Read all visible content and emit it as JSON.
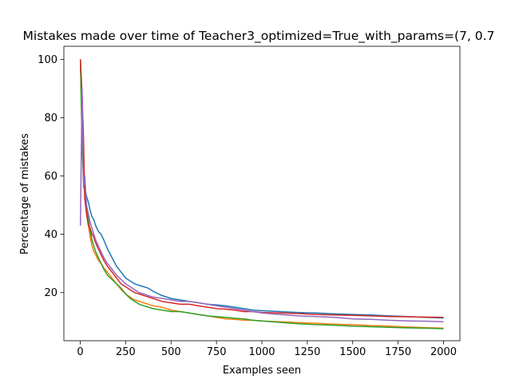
{
  "chart_data": {
    "type": "line",
    "title": "Mistakes made over time of Teacher3_optimized=True_with_params=(7, 0.7",
    "xlabel": "Examples seen",
    "ylabel": "Percentage of mistakes",
    "xlim": [
      -90,
      2090
    ],
    "ylim": [
      3.5,
      104.5
    ],
    "xticks": [
      0,
      250,
      500,
      750,
      1000,
      1250,
      1500,
      1750,
      2000
    ],
    "yticks": [
      20,
      40,
      60,
      80,
      100
    ],
    "grid": false,
    "legend": "none",
    "series": [
      {
        "name": "series-1",
        "color": "#1f77b4",
        "x": [
          1,
          10,
          18,
          25,
          35,
          45,
          55,
          65,
          75,
          85,
          100,
          115,
          130,
          150,
          175,
          200,
          225,
          250,
          275,
          300,
          325,
          350,
          375,
          400,
          450,
          500,
          550,
          600,
          650,
          700,
          750,
          800,
          850,
          900,
          950,
          1000,
          1100,
          1200,
          1300,
          1400,
          1500,
          1600,
          1700,
          1800,
          1900,
          2000
        ],
        "y": [
          100,
          76,
          60,
          56,
          53,
          51,
          48,
          46,
          45,
          43,
          41,
          40,
          38,
          35,
          32,
          29,
          27,
          25,
          24,
          23,
          22.5,
          22,
          21.5,
          20.5,
          19,
          18,
          17.5,
          17,
          16.5,
          16,
          15.8,
          15.5,
          15,
          14.5,
          14,
          13.8,
          13.5,
          13.2,
          13,
          12.7,
          12.5,
          12.3,
          12,
          11.8,
          11.5,
          11.3
        ]
      },
      {
        "name": "series-2",
        "color": "#ff7f0e",
        "x": [
          1,
          10,
          18,
          25,
          35,
          45,
          55,
          65,
          75,
          85,
          100,
          115,
          130,
          150,
          175,
          200,
          225,
          250,
          275,
          300,
          325,
          350,
          375,
          400,
          450,
          500,
          550,
          600,
          650,
          700,
          750,
          800,
          850,
          900,
          950,
          1000,
          1100,
          1200,
          1300,
          1400,
          1500,
          1600,
          1700,
          1800,
          1900,
          2000
        ],
        "y": [
          100,
          80,
          62,
          53,
          47,
          43,
          39,
          36,
          34,
          33,
          31,
          30,
          28.5,
          27,
          25,
          23,
          21,
          19.5,
          18.5,
          17.5,
          17,
          16.5,
          16,
          15.5,
          15,
          14,
          13.5,
          13,
          12.5,
          12,
          11.5,
          11,
          10.8,
          10.5,
          10.5,
          10.3,
          10,
          9.7,
          9.5,
          9.2,
          9,
          8.7,
          8.5,
          8.2,
          8,
          7.8
        ]
      },
      {
        "name": "series-3",
        "color": "#2ca02c",
        "x": [
          1,
          10,
          18,
          25,
          35,
          45,
          55,
          65,
          75,
          85,
          100,
          115,
          130,
          150,
          175,
          200,
          225,
          250,
          275,
          300,
          325,
          350,
          375,
          400,
          450,
          500,
          550,
          600,
          650,
          700,
          750,
          800,
          850,
          900,
          950,
          1000,
          1100,
          1200,
          1300,
          1400,
          1500,
          1600,
          1700,
          1800,
          1900,
          2000
        ],
        "y": [
          100,
          70,
          58,
          54,
          50,
          45,
          41,
          38,
          36,
          34,
          32,
          30,
          28,
          26,
          24.5,
          23,
          21.5,
          19.5,
          18,
          17,
          16,
          15.5,
          15,
          14.5,
          14,
          13.5,
          13.5,
          13,
          12.5,
          12,
          11.8,
          11.5,
          11.2,
          11,
          10.5,
          10.3,
          9.8,
          9.3,
          9,
          8.8,
          8.5,
          8.3,
          8.1,
          7.9,
          7.8,
          7.6
        ]
      },
      {
        "name": "series-4",
        "color": "#d62728",
        "x": [
          1,
          10,
          18,
          25,
          35,
          45,
          55,
          65,
          75,
          85,
          100,
          115,
          130,
          150,
          175,
          200,
          225,
          250,
          275,
          300,
          325,
          350,
          375,
          400,
          450,
          500,
          550,
          600,
          650,
          700,
          750,
          800,
          850,
          900,
          950,
          1000,
          1100,
          1200,
          1300,
          1400,
          1500,
          1600,
          1700,
          1800,
          1900,
          2000
        ],
        "y": [
          100,
          88,
          73,
          52,
          47,
          43,
          42,
          40,
          39,
          37,
          35,
          33,
          31,
          29,
          27,
          25,
          23,
          22,
          21,
          20,
          19.5,
          19,
          18.5,
          18,
          17,
          16.5,
          16,
          16,
          15.5,
          15,
          14.5,
          14.3,
          14,
          13.5,
          13.5,
          13.2,
          13,
          12.8,
          12.5,
          12.3,
          12.2,
          12,
          11.8,
          11.7,
          11.6,
          11.5
        ]
      },
      {
        "name": "series-5",
        "color": "#9467bd",
        "x": [
          1,
          10,
          18,
          25,
          35,
          45,
          55,
          65,
          75,
          85,
          100,
          115,
          130,
          150,
          175,
          200,
          225,
          250,
          275,
          300,
          325,
          350,
          375,
          400,
          450,
          500,
          550,
          600,
          650,
          700,
          750,
          800,
          850,
          900,
          950,
          1000,
          1100,
          1200,
          1300,
          1400,
          1500,
          1600,
          1700,
          1800,
          1900,
          2000
        ],
        "y": [
          43,
          90,
          56,
          60,
          50,
          47,
          44,
          42,
          40,
          38,
          36,
          34,
          32,
          30,
          28,
          26,
          24.5,
          23,
          22,
          21,
          20,
          19.5,
          19,
          18.5,
          18,
          17.5,
          17,
          17,
          16.5,
          16,
          15.5,
          15,
          14.5,
          14,
          13.5,
          13,
          12.5,
          12,
          11.8,
          11.5,
          11,
          10.8,
          10.5,
          10.3,
          10.2,
          10
        ]
      }
    ]
  }
}
